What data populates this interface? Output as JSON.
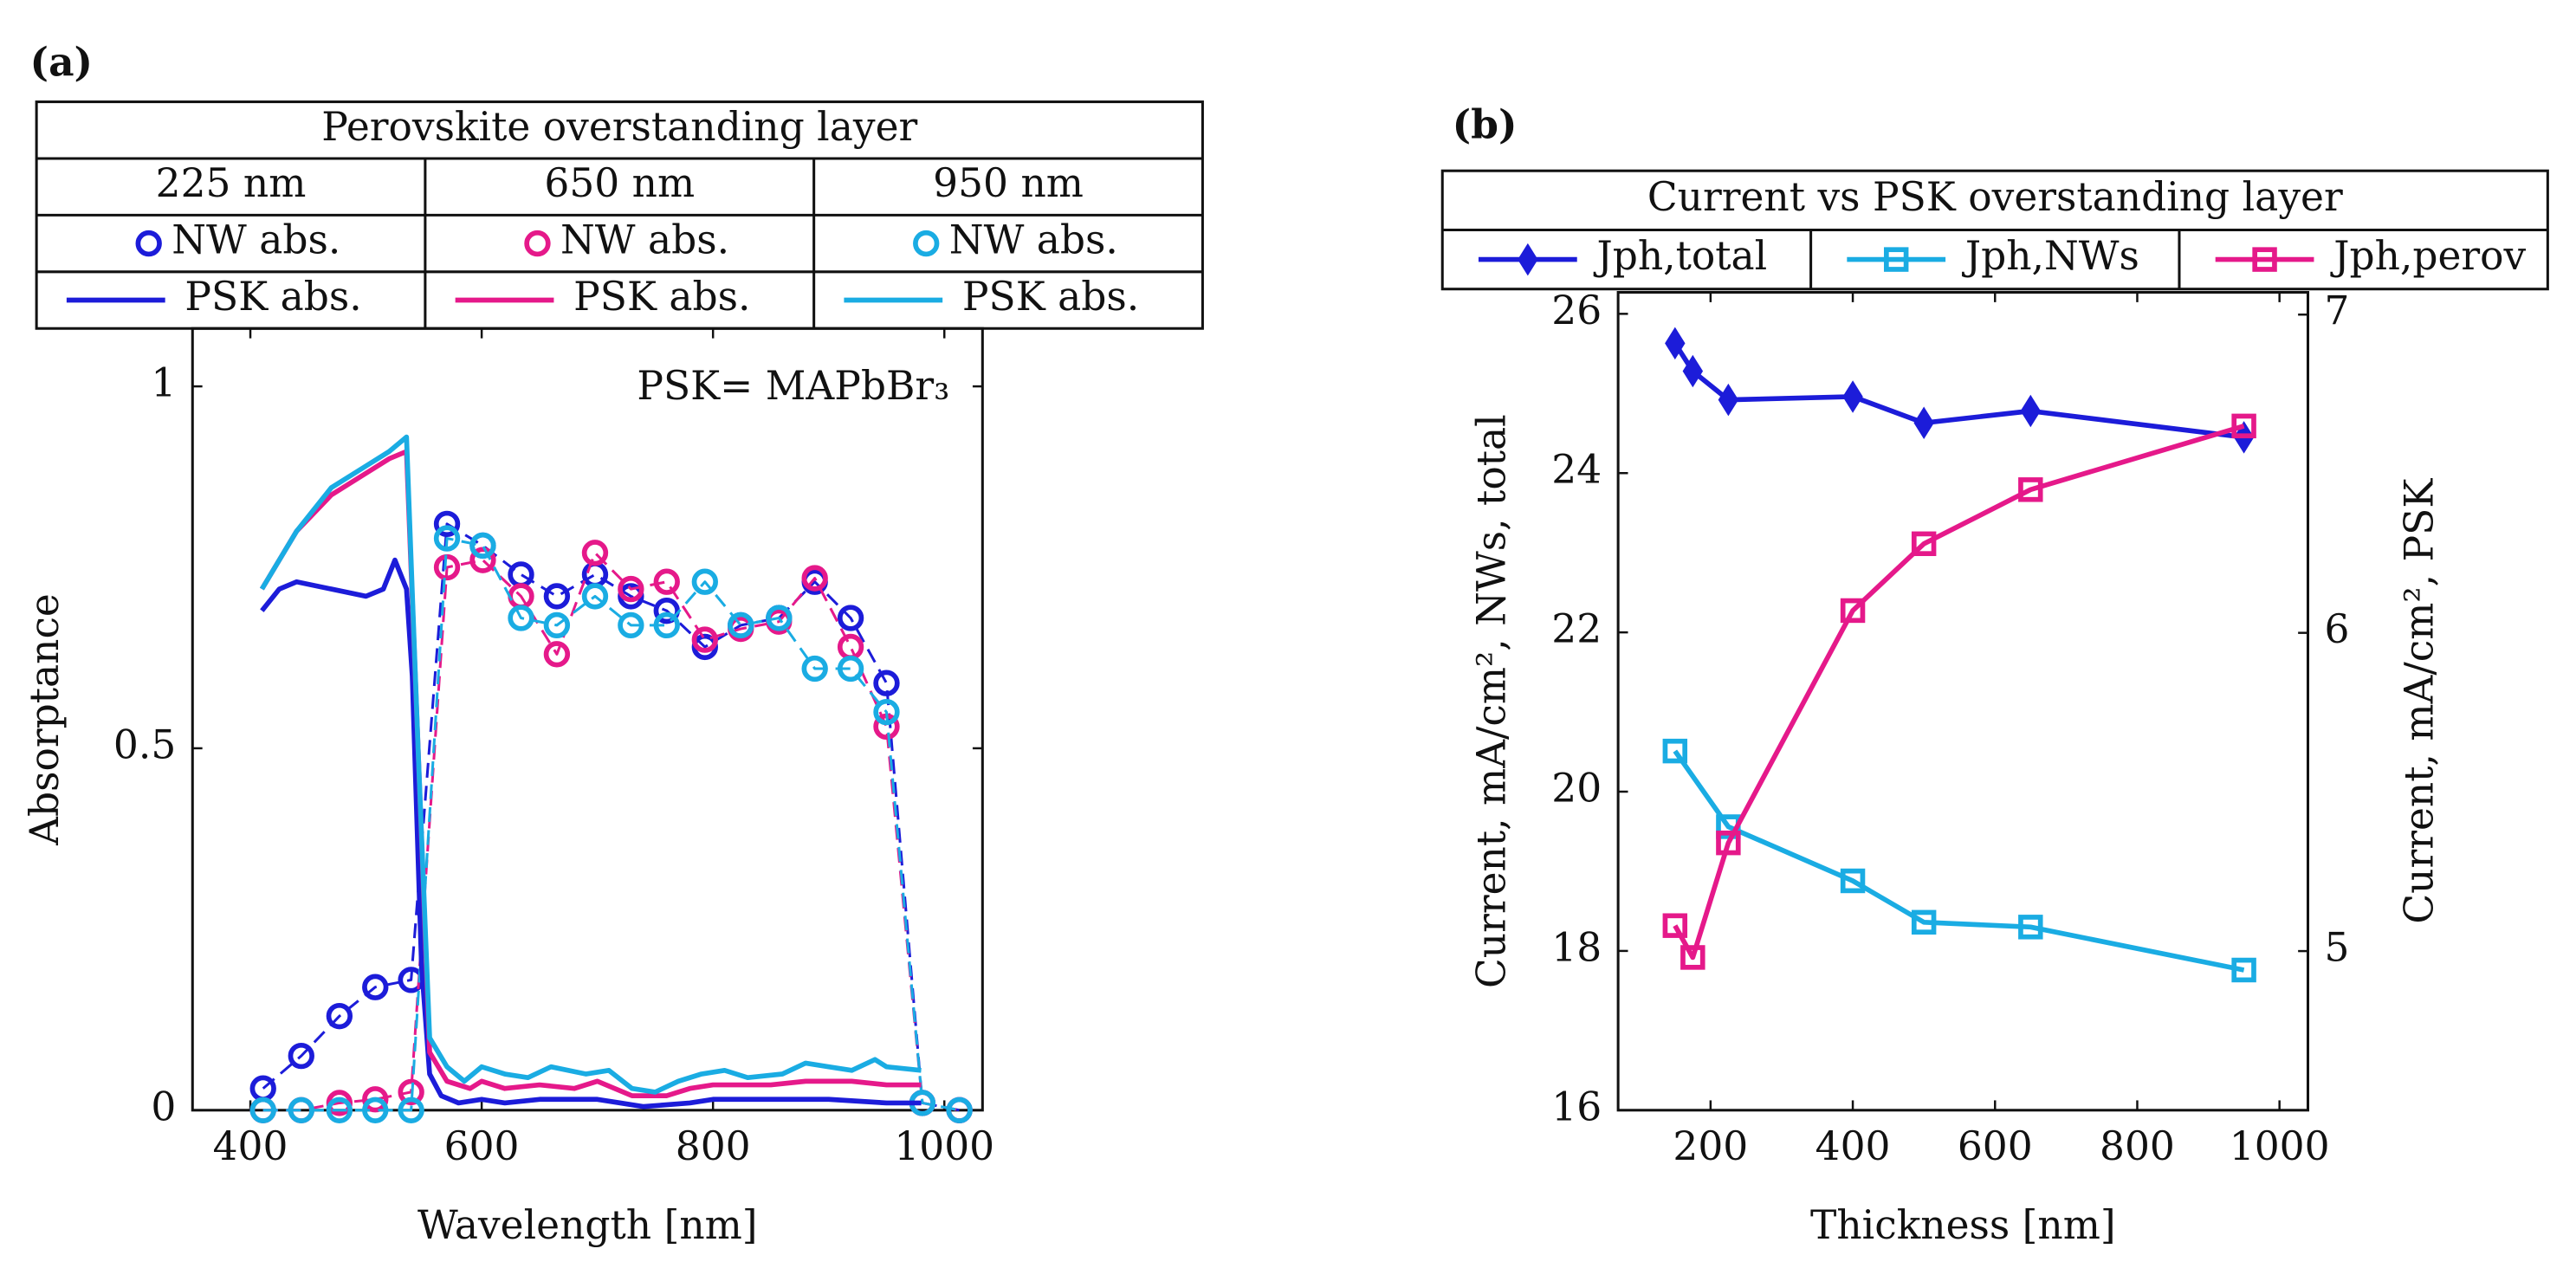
{
  "chart_data": [
    {
      "type": "line",
      "panel_label": "(a)",
      "legend_title": "Perovskite overstanding layer",
      "legend_columns": [
        "225 nm",
        "650 nm",
        "950 nm"
      ],
      "annotation": "PSK= MAPbBr₃",
      "xlabel": "Wavelength [nm]",
      "ylabel": "Absorptance",
      "xlim": [
        350,
        1033
      ],
      "ylim": [
        0,
        1.08
      ],
      "xticks": [
        400,
        600,
        800,
        1000
      ],
      "yticks": [
        0,
        0.5,
        1
      ],
      "series": [
        {
          "name": "NW abs.",
          "color": "#1c1cd9",
          "marker": "circle",
          "linestyle": "dashed",
          "x": [
            411,
            444,
            477,
            508,
            539,
            570,
            601,
            634,
            665,
            698,
            729,
            760,
            793,
            824,
            857,
            888,
            919,
            950,
            981,
            1013
          ],
          "values": [
            0.03,
            0.075,
            0.13,
            0.17,
            0.18,
            0.81,
            0.78,
            0.74,
            0.71,
            0.74,
            0.71,
            0.69,
            0.64,
            0.67,
            0.68,
            0.73,
            0.68,
            0.59,
            0.01,
            0
          ]
        },
        {
          "name": "NW abs.",
          "color": "#e5198a",
          "marker": "circle",
          "linestyle": "dashed",
          "x": [
            411,
            444,
            477,
            508,
            539,
            570,
            601,
            634,
            665,
            698,
            729,
            760,
            793,
            824,
            857,
            888,
            919,
            950,
            981,
            1013
          ],
          "values": [
            0,
            0,
            0.01,
            0.015,
            0.025,
            0.75,
            0.76,
            0.71,
            0.63,
            0.77,
            0.72,
            0.73,
            0.65,
            0.665,
            0.675,
            0.735,
            0.64,
            0.53,
            0.01,
            0
          ]
        },
        {
          "name": "NW abs.",
          "color": "#1aace3",
          "marker": "circle",
          "linestyle": "dashed",
          "x": [
            411,
            444,
            477,
            508,
            539,
            570,
            601,
            634,
            665,
            698,
            729,
            760,
            793,
            824,
            857,
            888,
            919,
            950,
            981,
            1013
          ],
          "values": [
            0,
            0,
            0,
            0,
            0,
            0.79,
            0.78,
            0.68,
            0.67,
            0.71,
            0.67,
            0.67,
            0.73,
            0.67,
            0.68,
            0.61,
            0.61,
            0.55,
            0.01,
            0
          ]
        },
        {
          "name": "PSK abs.",
          "color": "#1c1cd9",
          "marker": "none",
          "linestyle": "solid",
          "x": [
            410,
            425,
            440,
            470,
            500,
            515,
            525,
            535,
            540,
            548,
            555,
            565,
            580,
            600,
            620,
            650,
            700,
            740,
            780,
            800,
            850,
            900,
            950,
            980
          ],
          "values": [
            0.69,
            0.72,
            0.73,
            0.72,
            0.71,
            0.72,
            0.76,
            0.72,
            0.6,
            0.2,
            0.05,
            0.02,
            0.01,
            0.015,
            0.01,
            0.015,
            0.015,
            0.005,
            0.01,
            0.015,
            0.015,
            0.015,
            0.01,
            0.01
          ]
        },
        {
          "name": "PSK abs.",
          "color": "#e5198a",
          "marker": "none",
          "linestyle": "solid",
          "x": [
            410,
            440,
            470,
            500,
            520,
            535,
            545,
            555,
            570,
            590,
            600,
            620,
            650,
            680,
            700,
            730,
            760,
            780,
            800,
            850,
            880,
            920,
            950,
            980
          ],
          "values": [
            0.72,
            0.8,
            0.85,
            0.88,
            0.9,
            0.91,
            0.5,
            0.08,
            0.04,
            0.03,
            0.04,
            0.03,
            0.035,
            0.03,
            0.04,
            0.02,
            0.02,
            0.03,
            0.035,
            0.035,
            0.04,
            0.04,
            0.035,
            0.035
          ]
        },
        {
          "name": "PSK abs.",
          "color": "#1aace3",
          "marker": "none",
          "linestyle": "solid",
          "x": [
            410,
            440,
            470,
            500,
            520,
            535,
            545,
            555,
            570,
            585,
            600,
            620,
            640,
            660,
            690,
            710,
            730,
            750,
            770,
            790,
            810,
            830,
            860,
            880,
            900,
            920,
            940,
            950,
            980
          ],
          "values": [
            0.72,
            0.8,
            0.86,
            0.89,
            0.91,
            0.93,
            0.5,
            0.1,
            0.06,
            0.04,
            0.06,
            0.05,
            0.045,
            0.06,
            0.05,
            0.055,
            0.03,
            0.025,
            0.04,
            0.05,
            0.055,
            0.045,
            0.05,
            0.065,
            0.06,
            0.055,
            0.07,
            0.06,
            0.055
          ]
        }
      ]
    },
    {
      "type": "line",
      "panel_label": "(b)",
      "legend_title": "Current vs PSK overstanding layer",
      "xlabel": "Thickness [nm]",
      "ylabel": "Current, mA/cm², NWs, total",
      "y2label": "Current, mA/cm², PSK",
      "xlim": [
        70,
        1040
      ],
      "ylim": [
        16,
        26.27
      ],
      "y2lim": [
        4.5,
        7.07
      ],
      "xticks": [
        200,
        400,
        600,
        800,
        1000
      ],
      "yticks": [
        16,
        18,
        20,
        22,
        24,
        26
      ],
      "y2ticks": [
        5,
        6,
        7
      ],
      "series": [
        {
          "name": "Jph,total",
          "color": "#1c1cd9",
          "marker": "diamond",
          "linestyle": "solid",
          "x": [
            150,
            175,
            225,
            400,
            500,
            650,
            950
          ],
          "values": [
            25.63,
            25.28,
            24.92,
            24.96,
            24.63,
            24.78,
            24.45
          ]
        },
        {
          "name": "Jph,NWs",
          "color": "#1aace3",
          "marker": "square",
          "linestyle": "solid",
          "x": [
            150,
            225,
            400,
            500,
            650,
            950
          ],
          "values": [
            20.51,
            19.56,
            18.88,
            18.36,
            18.3,
            17.76
          ]
        },
        {
          "name": "Jph,perov",
          "color": "#e5198a",
          "marker": "square",
          "linestyle": "solid",
          "axis": "y2",
          "x": [
            150,
            175,
            225,
            400,
            500,
            650,
            950
          ],
          "values": [
            5.08,
            4.98,
            5.34,
            6.07,
            6.28,
            6.45,
            6.65
          ]
        }
      ]
    }
  ]
}
